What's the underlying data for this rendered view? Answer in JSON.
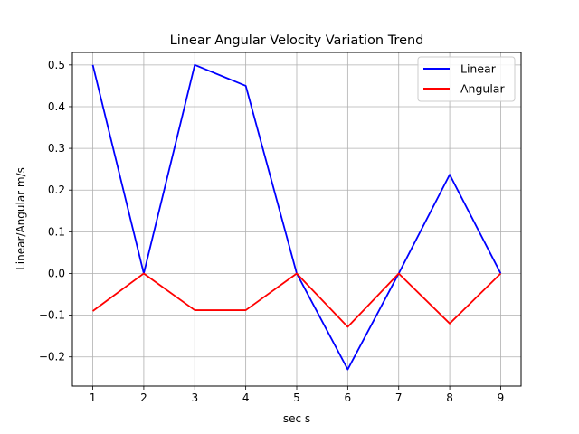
{
  "chart_data": {
    "type": "line",
    "title": "Linear Angular Velocity Variation Trend",
    "xlabel": "sec s",
    "ylabel": "Linear/Angular m/s",
    "x": [
      1,
      2,
      3,
      4,
      5,
      6,
      7,
      8,
      9
    ],
    "xlim": [
      0.6,
      9.4
    ],
    "ylim": [
      -0.27,
      0.53
    ],
    "xticks": [
      1,
      2,
      3,
      4,
      5,
      6,
      7,
      8,
      9
    ],
    "yticks": [
      -0.2,
      -0.1,
      0.0,
      0.1,
      0.2,
      0.3,
      0.4,
      0.5
    ],
    "ytick_labels": [
      "−0.2",
      "−0.1",
      "0.0",
      "0.1",
      "0.2",
      "0.3",
      "0.4",
      "0.5"
    ],
    "grid": true,
    "legend_position": "top-right",
    "series": [
      {
        "name": "Linear",
        "color": "#0000ff",
        "values": [
          0.5,
          0.0,
          0.5,
          0.45,
          0.0,
          -0.23,
          0.0,
          0.237,
          0.0
        ]
      },
      {
        "name": "Angular",
        "color": "#ff0000",
        "values": [
          -0.09,
          0.0,
          -0.088,
          -0.088,
          0.0,
          -0.128,
          0.0,
          -0.12,
          0.0
        ]
      }
    ]
  }
}
